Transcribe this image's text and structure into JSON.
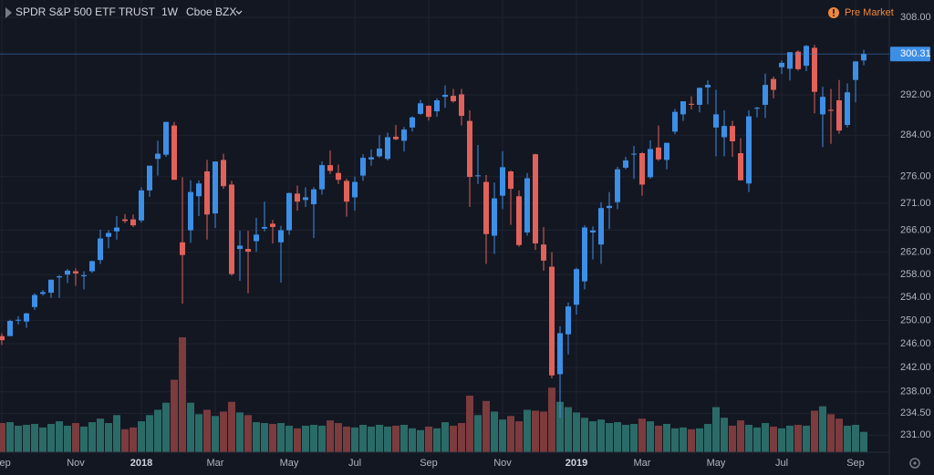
{
  "chart_data": {
    "type": "candlestick",
    "title": "SPDR S&P 500 ETF TRUST",
    "interval": "1W",
    "exchange": "Cboe BZX",
    "session_status": "Pre Market",
    "categories": [
      "Sep",
      null,
      null,
      null,
      null,
      null,
      null,
      null,
      null,
      "Nov",
      null,
      null,
      null,
      null,
      null,
      null,
      null,
      "2018",
      null,
      null,
      null,
      null,
      null,
      null,
      null,
      null,
      "Mar",
      null,
      null,
      null,
      null,
      null,
      null,
      null,
      null,
      "May",
      null,
      null,
      null,
      null,
      null,
      null,
      null,
      "Jul",
      null,
      null,
      null,
      null,
      null,
      null,
      null,
      null,
      "Sep",
      null,
      null,
      null,
      null,
      null,
      null,
      null,
      null,
      "Nov",
      null,
      null,
      null,
      null,
      null,
      null,
      null,
      null,
      "2019",
      null,
      null,
      null,
      null,
      null,
      null,
      null,
      "Mar",
      null,
      null,
      null,
      null,
      null,
      null,
      null,
      null,
      "May",
      null,
      null,
      null,
      null,
      null,
      null,
      null,
      "Jul",
      null,
      null,
      null,
      null,
      null,
      null,
      null,
      null,
      "Sep",
      null
    ],
    "open": [
      247.3,
      247.3,
      250.0,
      249.8,
      252.3,
      254.6,
      254.8,
      257.5,
      258.0,
      258.6,
      257.7,
      258.6,
      260.6,
      264.8,
      265.8,
      268.0,
      268.0,
      267.8,
      273.4,
      279.4,
      280.2,
      285.9,
      263.8,
      266.0,
      272.3,
      277.0,
      269.1,
      279.2,
      274.5,
      262.6,
      262.6,
      264.0,
      266.3,
      267.2,
      263.8,
      266.0,
      272.8,
      271.6,
      270.8,
      273.6,
      278.2,
      276.7,
      275.2,
      272.1,
      276.2,
      279.3,
      279.9,
      279.4,
      283.7,
      282.9,
      285.5,
      288.2,
      289.8,
      288.7,
      291.6,
      291.8,
      292.1,
      286.8,
      276.1,
      275.0,
      265.0,
      272.4,
      277.0,
      272.3,
      265.6,
      280.3,
      263.4,
      259.4,
      240.9,
      247.6,
      252.7,
      256.8,
      265.6,
      263.4,
      270.1,
      271.2,
      277.7,
      280.3,
      280.5,
      275.9,
      281.6,
      279.2,
      284.7,
      288.1,
      290.2,
      290.0,
      293.5,
      285.5,
      283.6,
      285.8,
      280.5,
      274.7,
      289.3,
      290.0,
      295.2,
      297.6,
      297.3,
      300.8,
      297.9,
      301.6,
      288.1,
      289.0,
      290.9,
      286.0,
      295.0,
      299.0
    ],
    "high": [
      247.8,
      250.1,
      250.7,
      251.3,
      254.7,
      255.3,
      257.1,
      257.9,
      259.0,
      259.1,
      258.6,
      260.5,
      266.1,
      266.0,
      268.6,
      269.0,
      268.9,
      274.0,
      278.1,
      282.9,
      286.6,
      286.6,
      275.9,
      275.3,
      275.3,
      279.2,
      278.9,
      280.4,
      275.2,
      265.9,
      265.9,
      268.3,
      271.3,
      267.9,
      266.8,
      273.0,
      274.3,
      274.0,
      274.0,
      278.9,
      281.0,
      278.3,
      275.6,
      276.0,
      280.3,
      281.2,
      284.0,
      284.5,
      286.0,
      285.6,
      287.7,
      291.0,
      289.9,
      291.3,
      293.9,
      293.2,
      293.2,
      288.9,
      282.1,
      276.3,
      274.9,
      280.9,
      277.2,
      273.4,
      276.7,
      280.4,
      266.6,
      262.0,
      249.0,
      253.1,
      259.2,
      266.9,
      266.7,
      271.2,
      273.1,
      277.9,
      279.8,
      281.9,
      280.7,
      283.0,
      285.9,
      282.5,
      289.2,
      290.5,
      291.7,
      293.5,
      294.9,
      293.0,
      288.9,
      286.8,
      283.4,
      288.9,
      289.6,
      296.3,
      295.7,
      299.0,
      300.7,
      301.1,
      302.2,
      302.2,
      293.6,
      293.2,
      295.0,
      294.3,
      298.8,
      301.2
    ],
    "low": [
      245.8,
      247.3,
      249.3,
      248.7,
      251.8,
      254.3,
      253.9,
      253.9,
      256.5,
      256.0,
      255.4,
      258.3,
      259.9,
      262.7,
      264.3,
      267.3,
      266.6,
      267.4,
      272.2,
      276.2,
      279.8,
      275.4,
      252.9,
      263.7,
      268.6,
      264.3,
      266.4,
      273.7,
      257.8,
      256.9,
      254.7,
      262.1,
      265.8,
      263.6,
      256.6,
      265.2,
      269.6,
      270.3,
      264.6,
      272.6,
      276.5,
      274.6,
      268.5,
      269.6,
      275.2,
      278.1,
      279.6,
      279.1,
      283.0,
      280.8,
      284.7,
      288.0,
      286.9,
      287.6,
      289.4,
      290.4,
      285.9,
      270.3,
      274.6,
      259.9,
      261.7,
      269.9,
      267.0,
      263.0,
      265.0,
      262.4,
      258.7,
      240.2,
      233.8,
      244.2,
      251.0,
      255.4,
      260.7,
      259.9,
      266.2,
      269.9,
      277.4,
      275.6,
      272.4,
      275.6,
      279.0,
      277.4,
      284.2,
      286.8,
      289.1,
      288.5,
      290.1,
      279.9,
      279.9,
      279.8,
      275.3,
      273.1,
      287.5,
      287.4,
      291.3,
      296.2,
      294.9,
      296.9,
      296.8,
      288.3,
      281.7,
      282.3,
      284.3,
      285.5,
      290.5,
      298.0
    ],
    "close": [
      246.6,
      249.9,
      250.1,
      251.2,
      254.4,
      254.9,
      257.1,
      257.7,
      258.7,
      258.2,
      257.9,
      260.4,
      264.5,
      265.5,
      266.5,
      267.7,
      266.9,
      273.4,
      278.1,
      280.4,
      286.6,
      275.4,
      261.5,
      273.1,
      274.7,
      268.9,
      278.9,
      274.2,
      258.1,
      263.2,
      262.1,
      265.2,
      266.6,
      266.6,
      266.0,
      272.9,
      271.3,
      272.1,
      273.6,
      278.2,
      277.1,
      275.4,
      271.3,
      275.0,
      279.6,
      279.7,
      281.4,
      283.6,
      283.2,
      285.1,
      287.5,
      290.3,
      287.6,
      290.9,
      291.99,
      290.7,
      287.8,
      275.95,
      276.25,
      265.3,
      271.9,
      277.8,
      273.7,
      263.3,
      275.7,
      263.6,
      260.5,
      240.7,
      247.8,
      252.4,
      258.98,
      266.5,
      265.96,
      270.1,
      270.5,
      277.4,
      279.1,
      280.4,
      274.5,
      281.3,
      279.3,
      282.5,
      288.6,
      290.7,
      290.0,
      293.4,
      294.0,
      288.1,
      285.8,
      282.8,
      275.3,
      287.7,
      289.4,
      294.0,
      293.0,
      298.5,
      300.7,
      297.2,
      302.0,
      292.6,
      291.6,
      288.8,
      284.9,
      292.5,
      298.8,
      300.31
    ],
    "volume": [
      330,
      340,
      300,
      310,
      320,
      280,
      320,
      350,
      300,
      330,
      290,
      340,
      380,
      330,
      420,
      260,
      280,
      350,
      420,
      480,
      560,
      820,
      1300,
      560,
      430,
      480,
      410,
      460,
      570,
      450,
      420,
      340,
      330,
      320,
      330,
      300,
      270,
      300,
      310,
      300,
      360,
      330,
      290,
      280,
      310,
      290,
      310,
      290,
      300,
      310,
      270,
      250,
      290,
      270,
      340,
      300,
      330,
      640,
      420,
      580,
      460,
      370,
      410,
      350,
      480,
      470,
      460,
      730,
      570,
      510,
      450,
      390,
      350,
      370,
      330,
      340,
      310,
      320,
      380,
      350,
      300,
      320,
      270,
      280,
      260,
      270,
      320,
      510,
      390,
      300,
      360,
      310,
      280,
      330,
      290,
      270,
      300,
      310,
      300,
      470,
      520,
      430,
      380,
      300,
      310,
      230
    ],
    "up_color": "#3d8fe6",
    "down_color": "#e0625a",
    "volume_up_color": "#2b6b67",
    "volume_down_color": "#7c3b3d",
    "last_price": 300.31,
    "last_price_color": "#3d8fe6",
    "log_scale": true,
    "grid": true,
    "ylim": [
      228.3,
      311.7
    ],
    "yticks": [
      {
        "value": 231,
        "label": "231.00"
      },
      {
        "value": 234.5,
        "label": "234.50"
      },
      {
        "value": 238,
        "label": "238.00"
      },
      {
        "value": 242,
        "label": "242.00"
      },
      {
        "value": 246,
        "label": "246.00"
      },
      {
        "value": 250,
        "label": "250.00"
      },
      {
        "value": 254,
        "label": "254.00"
      },
      {
        "value": 258,
        "label": "258.00"
      },
      {
        "value": 262,
        "label": "262.00"
      },
      {
        "value": 266,
        "label": "266.00"
      },
      {
        "value": 271,
        "label": "271.00"
      },
      {
        "value": 276,
        "label": "276.00"
      },
      {
        "value": 284,
        "label": "284.00"
      },
      {
        "value": 292,
        "label": "292.00"
      },
      {
        "value": 308,
        "label": "308.00"
      }
    ]
  }
}
